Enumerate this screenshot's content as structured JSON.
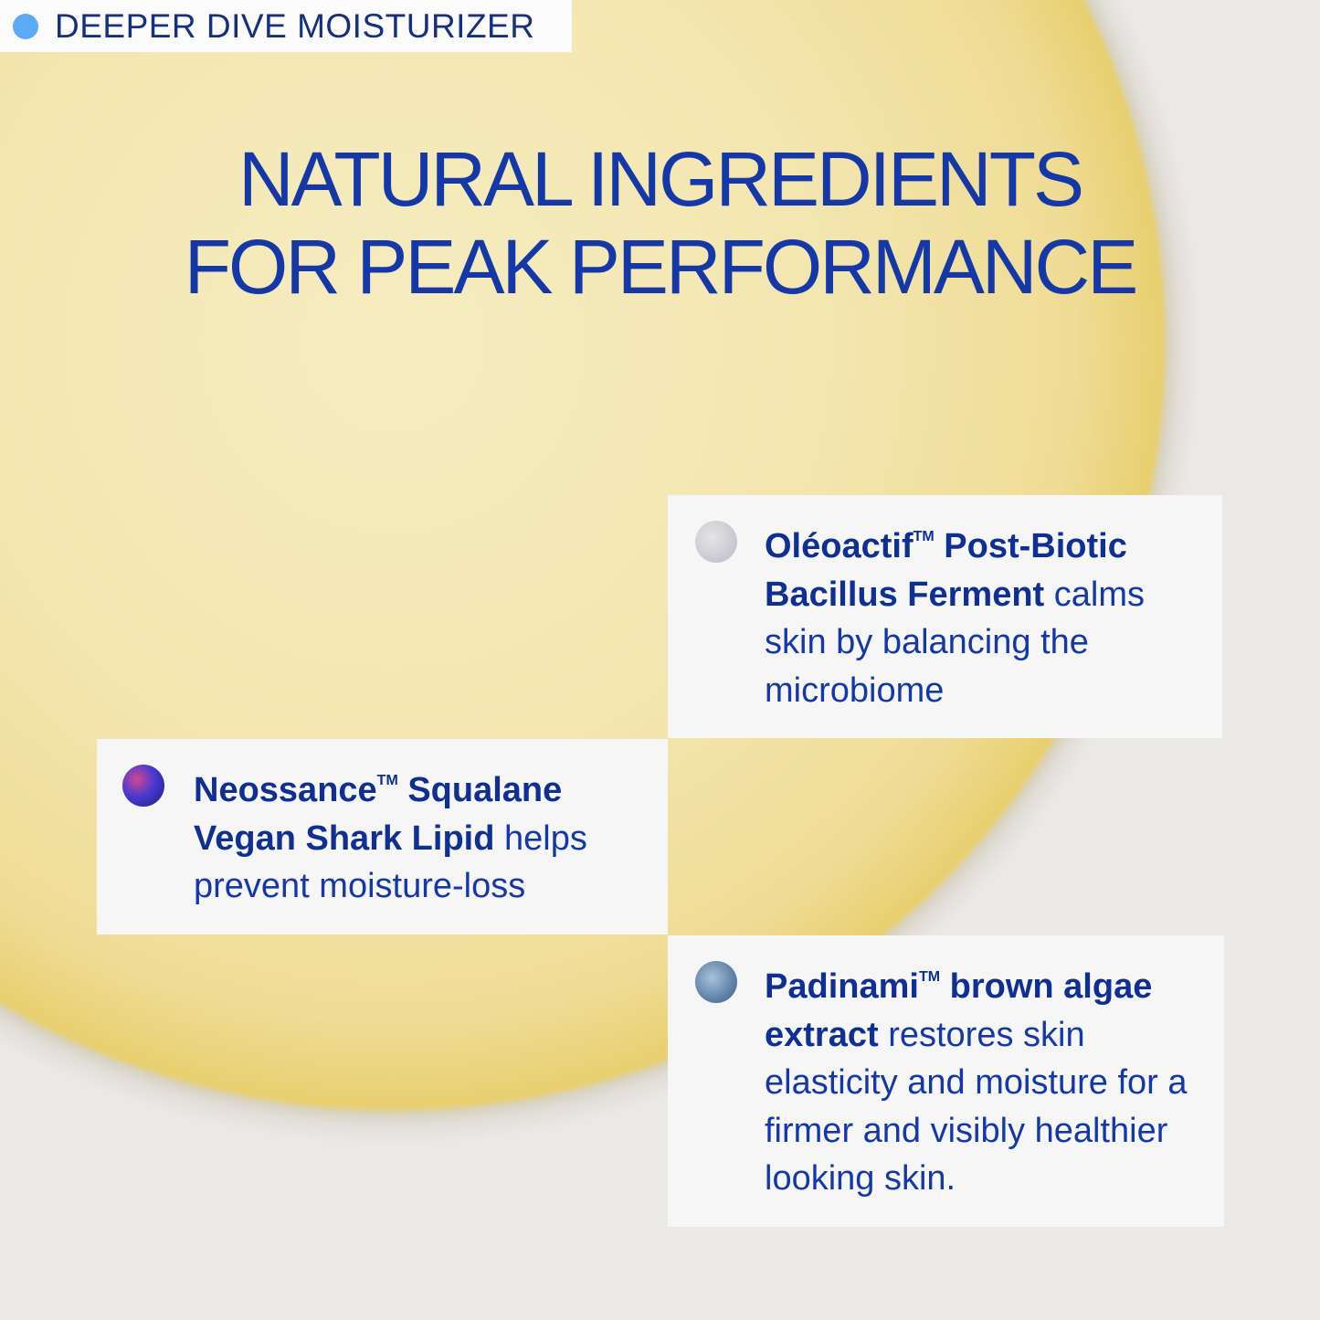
{
  "tag": {
    "label": "DEEPER DIVE MOISTURIZER",
    "dot_color": "#5daaf4"
  },
  "title": {
    "line1": "NATURAL INGREDIENTS",
    "line2": "FOR PEAK PERFORMANCE"
  },
  "ingredients": [
    {
      "name_a": "Oléoactif",
      "tm": "TM",
      "name_b": " Post-Biotic Bacillus Ferment",
      "desc": " calms skin by balancing the microbiome",
      "icon": "ferment-swatch-icon"
    },
    {
      "name_a": "Neossance",
      "tm": "TM",
      "name_b": " Squalane Vegan Shark Lipid",
      "desc": " helps prevent moisture-loss",
      "icon": "squalane-swatch-icon"
    },
    {
      "name_a": "Padinami",
      "tm": "TM",
      "name_b": " brown algae extract",
      "desc": " restores skin elasticity and moisture for a firmer and visibly healthier looking skin.",
      "icon": "algae-swatch-icon"
    }
  ],
  "colors": {
    "text": "#1538a8",
    "background": "#ebe9e6",
    "blob": "#f3e6b0"
  }
}
